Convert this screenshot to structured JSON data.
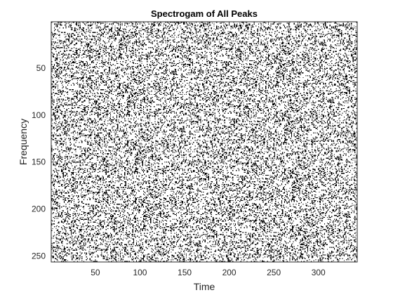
{
  "chart_data": {
    "type": "heatmap",
    "title": "Spectrogam of All Peaks",
    "xlabel": "Time",
    "ylabel": "Frequency",
    "xlim": [
      0.5,
      343.5
    ],
    "ylim": [
      0.5,
      256.5
    ],
    "y_direction": "reversed",
    "xticks": [
      50,
      100,
      150,
      200,
      250,
      300
    ],
    "yticks": [
      50,
      100,
      150,
      200,
      250
    ],
    "grid": false,
    "colors": {
      "peak": "#000000",
      "background": "#ffffff",
      "axis": "#262626"
    },
    "n_time_bins": 343,
    "n_freq_bins": 256,
    "peak_density": 0.22
  }
}
